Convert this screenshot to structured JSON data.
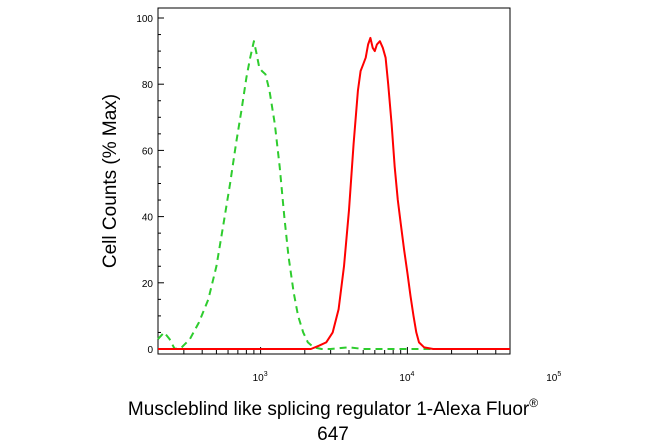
{
  "chart_data": {
    "type": "line",
    "title": "",
    "ylabel": "Cell Counts (% Max)",
    "xlabel_line1": "Muscleblind like splicing regulator 1-Alexa Fluor",
    "xlabel_reg": "®",
    "xlabel_line2": "647",
    "x_scale": "log",
    "xlim": [
      200,
      50000
    ],
    "ylim": [
      0,
      100
    ],
    "yticks": [
      0,
      20,
      40,
      60,
      80,
      100
    ],
    "xticks": [
      {
        "value": 1000,
        "base": "10",
        "exp": "3"
      },
      {
        "value": 10000,
        "base": "10",
        "exp": "4"
      },
      {
        "value": 100000,
        "base": "10",
        "exp": "5"
      }
    ],
    "grid": false,
    "series": [
      {
        "color": "#2ecc2e",
        "style": "dashed",
        "points": [
          [
            200,
            3
          ],
          [
            220,
            5
          ],
          [
            240,
            3
          ],
          [
            260,
            0
          ],
          [
            290,
            0.5
          ],
          [
            330,
            3
          ],
          [
            380,
            8
          ],
          [
            440,
            15
          ],
          [
            500,
            25
          ],
          [
            560,
            38
          ],
          [
            620,
            50
          ],
          [
            680,
            62
          ],
          [
            740,
            72
          ],
          [
            800,
            82
          ],
          [
            850,
            88
          ],
          [
            900,
            93
          ],
          [
            940,
            89
          ],
          [
            980,
            85
          ],
          [
            1020,
            84
          ],
          [
            1080,
            83
          ],
          [
            1150,
            78
          ],
          [
            1250,
            68
          ],
          [
            1350,
            55
          ],
          [
            1450,
            40
          ],
          [
            1550,
            28
          ],
          [
            1680,
            17
          ],
          [
            1800,
            10
          ],
          [
            1950,
            5
          ],
          [
            2100,
            2
          ],
          [
            2300,
            0.5
          ],
          [
            2600,
            0
          ],
          [
            3000,
            0
          ],
          [
            4000,
            0.5
          ],
          [
            5000,
            0
          ],
          [
            6000,
            0
          ],
          [
            8000,
            0
          ],
          [
            10000,
            0
          ],
          [
            20000,
            0
          ],
          [
            50000,
            0
          ]
        ]
      },
      {
        "color": "#ff0000",
        "style": "solid",
        "points": [
          [
            200,
            0
          ],
          [
            1000,
            0
          ],
          [
            1800,
            0
          ],
          [
            2200,
            0
          ],
          [
            2500,
            1
          ],
          [
            2800,
            2
          ],
          [
            3100,
            5
          ],
          [
            3400,
            12
          ],
          [
            3700,
            25
          ],
          [
            4000,
            42
          ],
          [
            4300,
            62
          ],
          [
            4600,
            78
          ],
          [
            4800,
            84
          ],
          [
            5000,
            86
          ],
          [
            5200,
            88
          ],
          [
            5400,
            92
          ],
          [
            5600,
            94
          ],
          [
            5800,
            91
          ],
          [
            6000,
            90
          ],
          [
            6200,
            92
          ],
          [
            6500,
            93
          ],
          [
            6800,
            91
          ],
          [
            7100,
            88
          ],
          [
            7400,
            80
          ],
          [
            7800,
            68
          ],
          [
            8200,
            55
          ],
          [
            8600,
            45
          ],
          [
            9000,
            38
          ],
          [
            9500,
            30
          ],
          [
            10000,
            23
          ],
          [
            10500,
            16
          ],
          [
            11000,
            10
          ],
          [
            11500,
            5
          ],
          [
            12000,
            2
          ],
          [
            13000,
            0.5
          ],
          [
            15000,
            0
          ],
          [
            20000,
            0
          ],
          [
            50000,
            0
          ]
        ]
      }
    ]
  }
}
